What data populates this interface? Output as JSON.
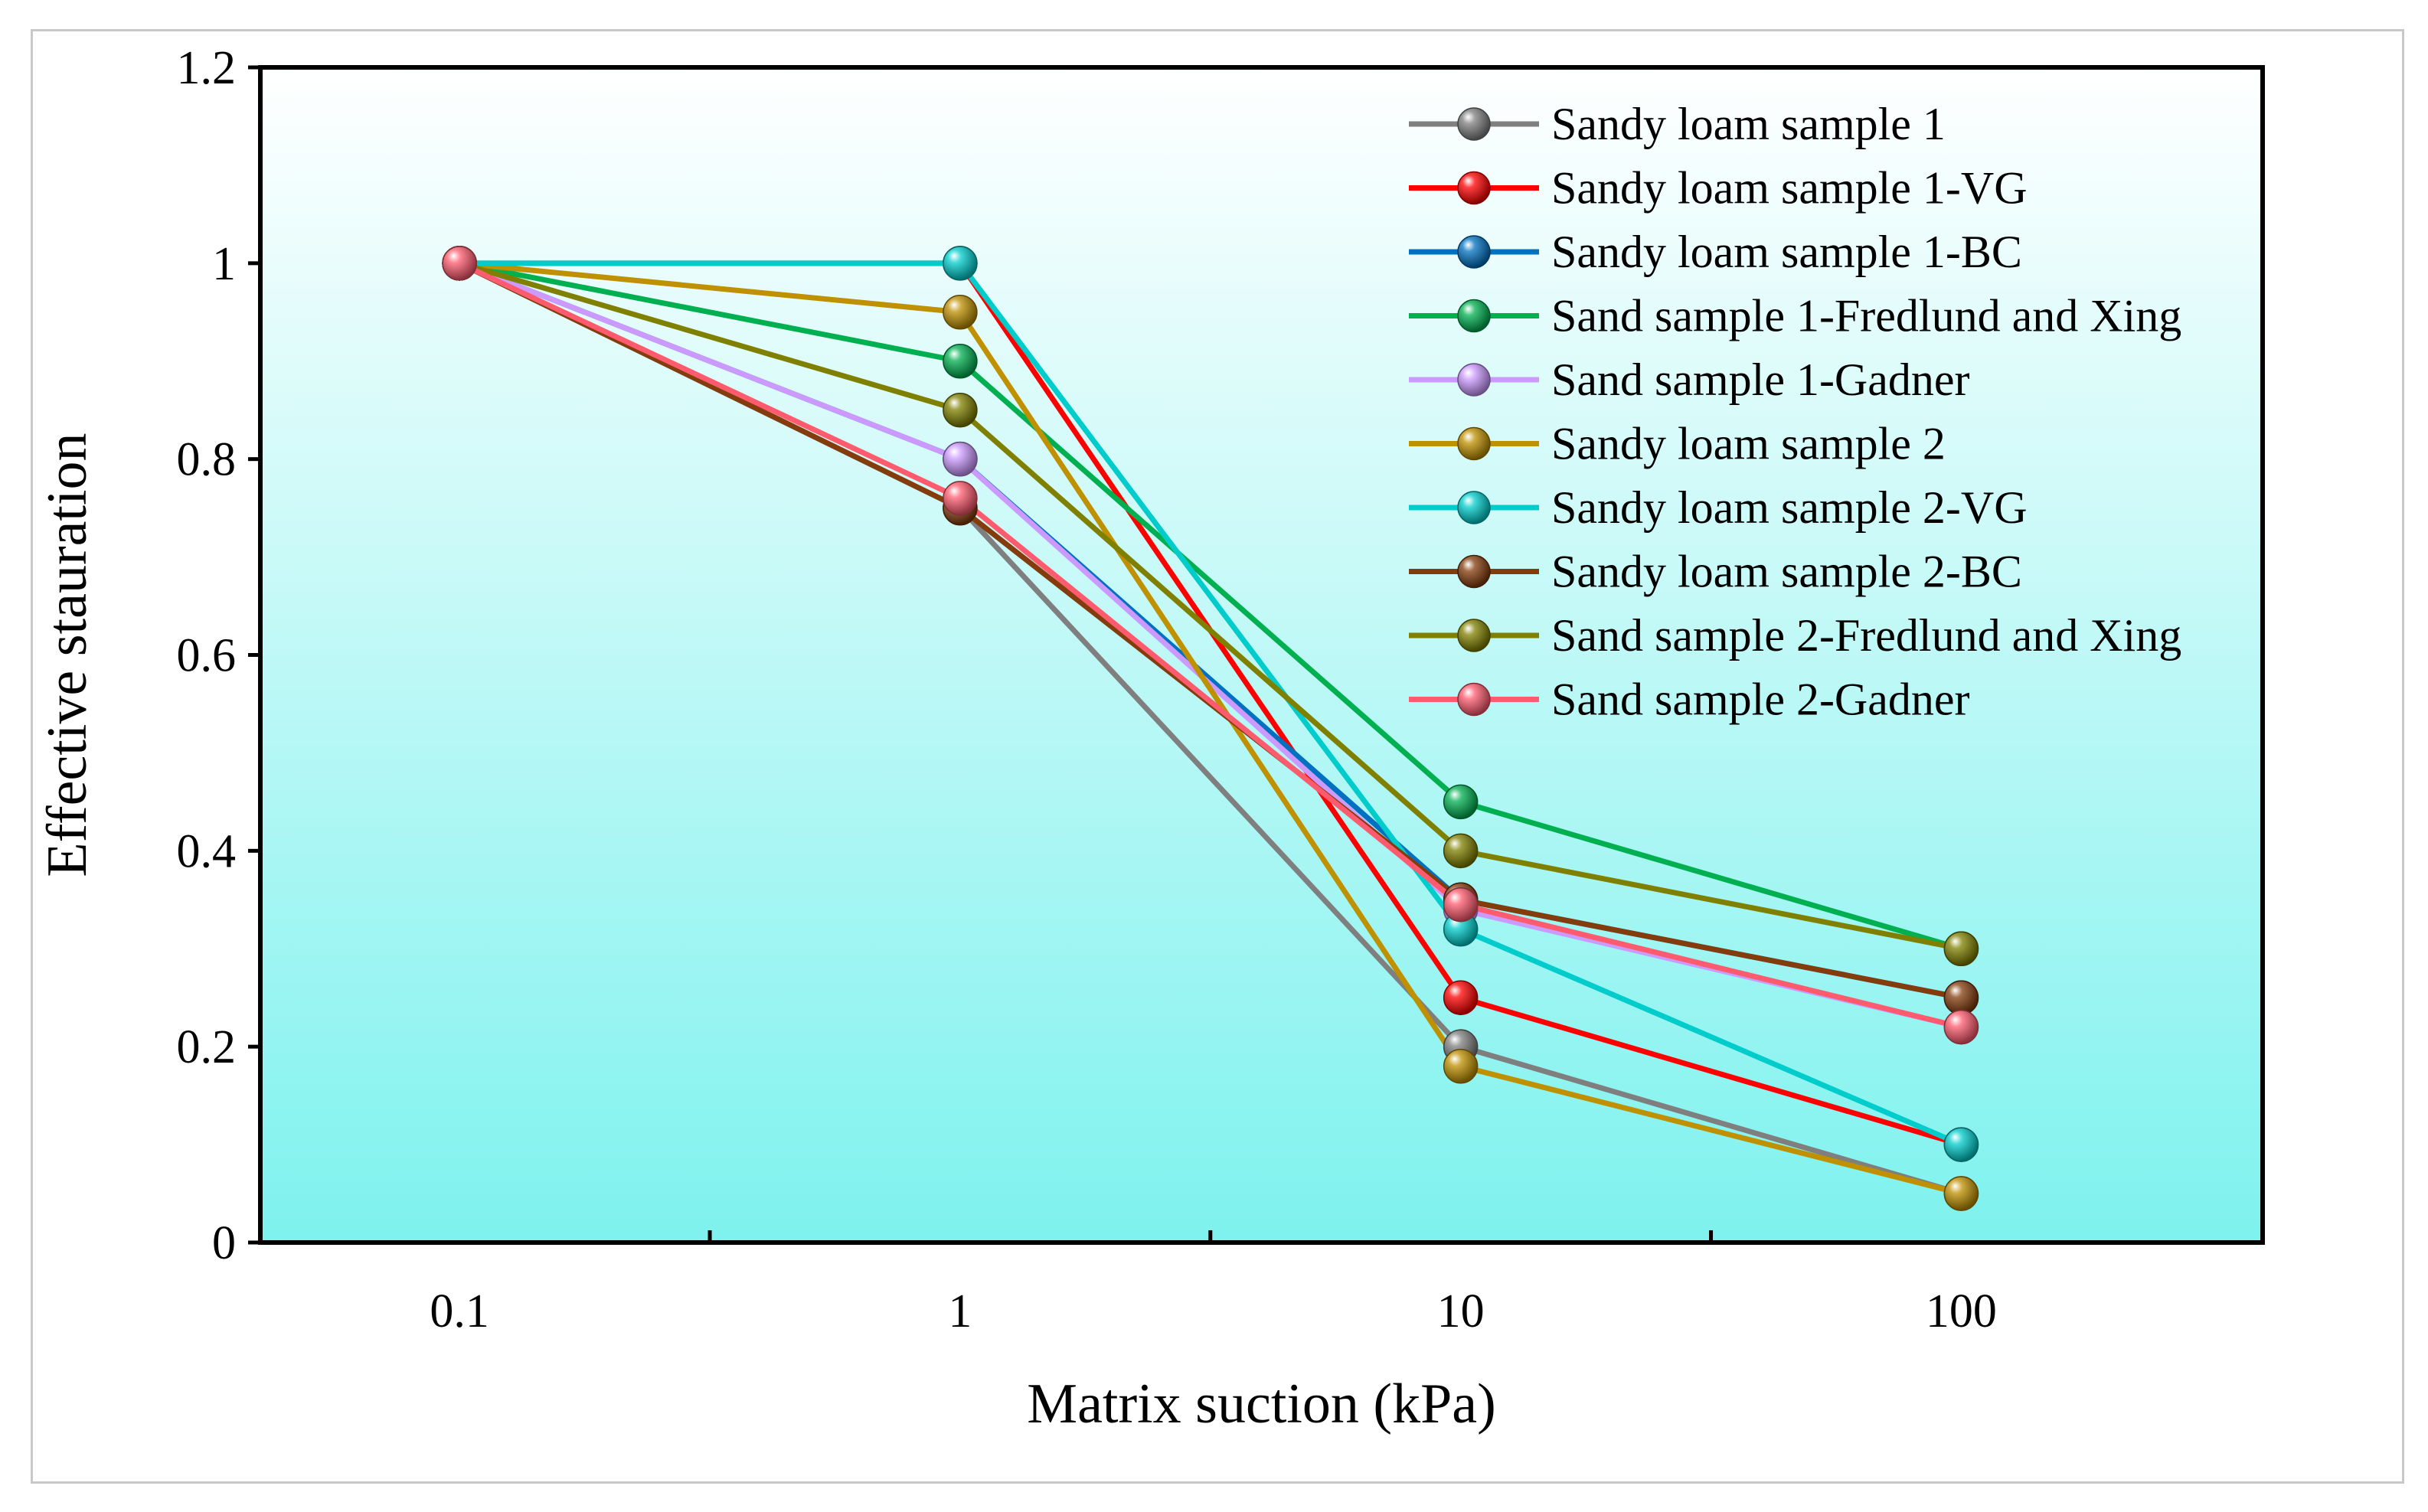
{
  "chart_data": {
    "type": "line",
    "title": "",
    "xlabel": "Matrix suction (kPa)",
    "ylabel": "Effective stauration",
    "x_scale": "log",
    "xlim": [
      0.04,
      400
    ],
    "ylim": [
      0,
      1.2
    ],
    "x_ticks": [
      0.1,
      1,
      10,
      100
    ],
    "x_tick_labels": [
      "0.1",
      "1",
      "10",
      "100"
    ],
    "y_ticks": [
      0,
      0.2,
      0.4,
      0.6,
      0.8,
      1,
      1.2
    ],
    "y_tick_labels": [
      "0",
      "0.2",
      "0.4",
      "0.6",
      "0.8",
      "1",
      "1.2"
    ],
    "grid": false,
    "legend_position": "top-right",
    "background": {
      "top": "#ffffff",
      "bottom": "#7ef2ee"
    },
    "x": [
      0.1,
      1,
      10,
      100
    ],
    "series": [
      {
        "name": "Sandy loam sample 1",
        "color": "#7f7f7f",
        "values": [
          1,
          0.75,
          0.2,
          0.05
        ]
      },
      {
        "name": "Sandy loam sample 1-VG",
        "color": "#ff0000",
        "values": [
          1,
          1,
          0.25,
          0.1
        ]
      },
      {
        "name": "Sandy loam sample 1-BC",
        "color": "#0070c0",
        "values": [
          1,
          0.8,
          0.35,
          0.25
        ]
      },
      {
        "name": "Sand sample 1-Fredlund and Xing",
        "color": "#00b050",
        "values": [
          1,
          0.9,
          0.45,
          0.3
        ]
      },
      {
        "name": "Sand sample 1-Gadner",
        "color": "#cc99ff",
        "values": [
          1,
          0.8,
          0.34,
          0.22
        ]
      },
      {
        "name": "Sandy loam sample 2",
        "color": "#bf9000",
        "values": [
          1,
          0.95,
          0.18,
          0.05
        ]
      },
      {
        "name": "Sandy loam sample 2-VG",
        "color": "#00cccc",
        "values": [
          1,
          1,
          0.32,
          0.1
        ]
      },
      {
        "name": "Sandy loam sample 2-BC",
        "color": "#843c0c",
        "values": [
          1,
          0.75,
          0.35,
          0.25
        ]
      },
      {
        "name": "Sand sample 2-Fredlund and Xing",
        "color": "#808000",
        "values": [
          1,
          0.85,
          0.4,
          0.3
        ]
      },
      {
        "name": "Sand sample 2-Gadner",
        "color": "#ff5b6e",
        "values": [
          1,
          0.76,
          0.345,
          0.22
        ]
      }
    ]
  }
}
